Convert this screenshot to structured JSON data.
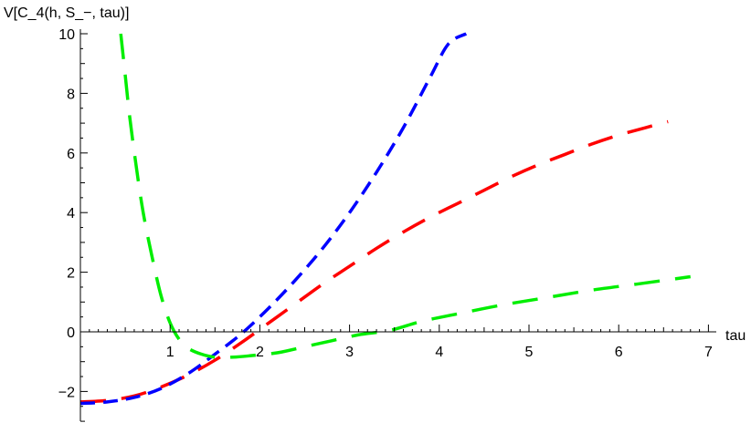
{
  "chart_data": {
    "type": "line",
    "title": "",
    "xlabel": "tau",
    "ylabel": "V[C_4(h, S_−, tau)]",
    "xlim": [
      0,
      7
    ],
    "ylim": [
      -3,
      10
    ],
    "grid": false,
    "legend": "none",
    "x_ticks": [
      "1",
      "2",
      "3",
      "4",
      "5",
      "6",
      "7"
    ],
    "y_ticks": [
      "−2",
      "0",
      "2",
      "4",
      "6",
      "8",
      "10"
    ],
    "series": [
      {
        "color": "#ff0000",
        "style": "long-dash",
        "x": [
          0.0,
          0.3,
          0.6,
          0.9,
          1.2,
          1.5,
          1.8,
          2.1,
          2.4,
          2.7,
          3.0,
          3.3,
          3.6,
          3.9,
          4.2,
          4.5,
          4.8,
          5.1,
          5.4,
          5.7,
          6.0,
          6.3,
          6.55
        ],
        "values": [
          -2.35,
          -2.3,
          -2.15,
          -1.85,
          -1.45,
          -0.95,
          -0.35,
          0.3,
          0.95,
          1.6,
          2.2,
          2.8,
          3.35,
          3.85,
          4.3,
          4.75,
          5.2,
          5.6,
          5.95,
          6.3,
          6.6,
          6.85,
          7.05
        ]
      },
      {
        "color": "#0000ff",
        "style": "medium-dash",
        "x": [
          0.0,
          0.3,
          0.6,
          0.9,
          1.2,
          1.5,
          1.8,
          2.1,
          2.4,
          2.7,
          3.0,
          3.3,
          3.6,
          3.9,
          4.1,
          4.3
        ],
        "values": [
          -2.4,
          -2.35,
          -2.2,
          -1.9,
          -1.4,
          -0.75,
          -0.05,
          0.8,
          1.75,
          2.8,
          4.0,
          5.35,
          6.85,
          8.55,
          9.65,
          10.0
        ]
      },
      {
        "color": "#00ee00",
        "style": "long-dash",
        "x": [
          0.45,
          0.5,
          0.55,
          0.62,
          0.7,
          0.8,
          0.9,
          1.0,
          1.1,
          1.2,
          1.35,
          1.5,
          1.7,
          1.9,
          2.2,
          2.5,
          2.8,
          3.1,
          3.45,
          3.8,
          4.2,
          4.7,
          5.2,
          5.7,
          6.2,
          6.8
        ],
        "values": [
          10.0,
          8.6,
          7.2,
          5.6,
          4.0,
          2.5,
          1.2,
          0.3,
          -0.25,
          -0.55,
          -0.75,
          -0.85,
          -0.85,
          -0.8,
          -0.7,
          -0.5,
          -0.3,
          -0.1,
          0.05,
          0.35,
          0.6,
          0.9,
          1.15,
          1.4,
          1.6,
          1.85
        ]
      }
    ]
  }
}
